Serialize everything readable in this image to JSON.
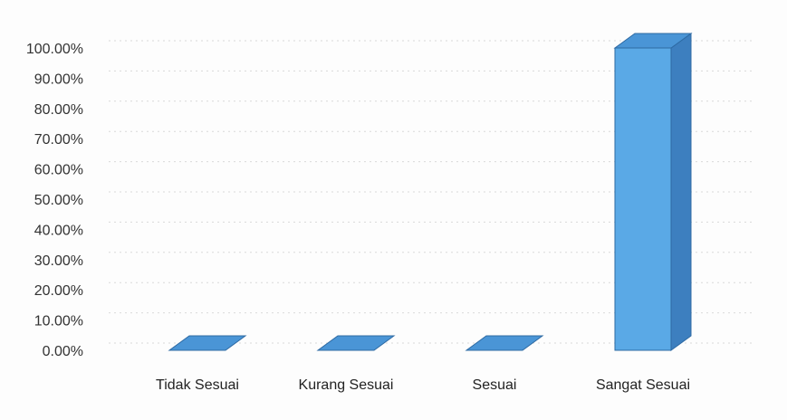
{
  "chart_data": {
    "type": "bar",
    "style": "3d-column",
    "categories": [
      "Tidak Sesuai",
      "Kurang Sesuai",
      "Sesuai",
      "Sangat Sesuai"
    ],
    "values": [
      0,
      0,
      0,
      100
    ],
    "ylim": [
      0,
      100
    ],
    "yticks": [
      "0.00%",
      "10.00%",
      "20.00%",
      "30.00%",
      "40.00%",
      "50.00%",
      "60.00%",
      "70.00%",
      "80.00%",
      "90.00%",
      "100.00%"
    ],
    "grid": true,
    "legend": "none",
    "colors": {
      "bar_front": "#5aa9e6",
      "bar_side": "#3d7fbf",
      "bar_top": "#4a95d6",
      "bar_edge": "#2e6aa3"
    }
  }
}
